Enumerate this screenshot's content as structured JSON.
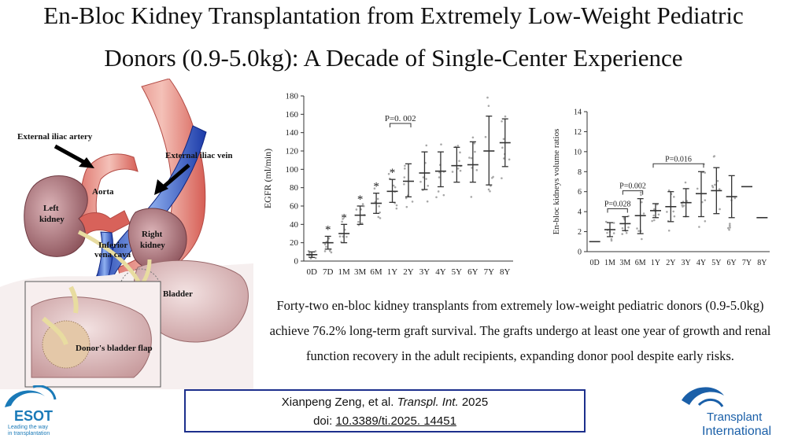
{
  "title": {
    "line1": "En-Bloc Kidney Transplantation from Extremely Low-Weight Pediatric",
    "line2": "Donors (0.9-5.0kg): A Decade of Single-Center Experience"
  },
  "illustration": {
    "labels": {
      "artery": "External iliac artery",
      "vein": "External iliac vein",
      "aorta": "Aorta",
      "left_kidney_1": "Left",
      "left_kidney_2": "kidney",
      "ivc_1": "Inferior",
      "ivc_2": "vena cava",
      "right_kidney_1": "Right",
      "right_kidney_2": "kidney",
      "bladder": "Bladder",
      "flap": "Donor's bladder flap"
    }
  },
  "caption": {
    "line1": "Forty-two en-bloc kidney transplants from extremely low-weight pediatric donors (0.9-5.0kg)",
    "line2": "achieve 76.2% long-term graft survival. The grafts undergo at least one year of growth and renal",
    "line3": "function recovery in the adult recipients, expanding donor pool despite early risks."
  },
  "citation": {
    "authors": "Xianpeng Zeng, et al. ",
    "journal": "Transpl. Int.",
    "year": " 2025",
    "doi_label": "doi: ",
    "doi": "10.3389/ti.2025. 14451"
  },
  "logos": {
    "esot_name": "ESOT",
    "esot_tagline_1": "Leading the way",
    "esot_tagline_2": "in transplantation",
    "ti_name_1": "Transplant",
    "ti_name_2": "International",
    "ti_color": "#1a5fa8",
    "esot_color": "#1a7ab8"
  },
  "chart_data": [
    {
      "type": "scatter",
      "ylabel": "EGFR (ml/min)",
      "ylim": [
        0,
        180
      ],
      "yticks": [
        0,
        20,
        40,
        60,
        80,
        100,
        120,
        140,
        160,
        180
      ],
      "categories": [
        "0D",
        "7D",
        "1M",
        "3M",
        "6M",
        "1Y",
        "2Y",
        "3Y",
        "4Y",
        "5Y",
        "6Y",
        "7Y",
        "8Y"
      ],
      "mean": [
        7,
        20,
        30,
        50,
        63,
        76,
        87,
        96,
        98,
        104,
        105,
        120,
        129
      ],
      "lower": [
        4,
        13,
        20,
        40,
        52,
        64,
        70,
        78,
        81,
        86,
        86,
        83,
        103
      ],
      "upper": [
        10,
        27,
        40,
        60,
        74,
        89,
        106,
        119,
        119,
        124,
        130,
        158,
        155
      ],
      "significance_marks": [
        "",
        "*",
        "*",
        "*",
        "*",
        "*",
        "",
        "",
        "",
        "",
        "",
        "",
        ""
      ],
      "bracket": {
        "label": "P=0. 002",
        "from": "1Y",
        "to": "2Y"
      },
      "points_color": "#a8a8a8",
      "line_color": "#333333"
    },
    {
      "type": "scatter",
      "ylabel": "En-bloc kidneys volume ratios",
      "ylim": [
        0,
        14
      ],
      "yticks": [
        0,
        2,
        4,
        6,
        8,
        10,
        12,
        14
      ],
      "categories": [
        "0D",
        "1M",
        "3M",
        "6M",
        "1Y",
        "2Y",
        "3Y",
        "4Y",
        "5Y",
        "6Y",
        "7Y",
        "8Y"
      ],
      "mean": [
        1.0,
        2.2,
        2.8,
        3.6,
        4.1,
        4.5,
        4.9,
        5.8,
        6.1,
        5.5,
        6.5,
        3.4
      ],
      "lower": [
        1.0,
        1.5,
        2.1,
        1.8,
        3.4,
        3.0,
        3.5,
        3.5,
        3.8,
        3.4,
        6.5,
        3.4
      ],
      "upper": [
        1.0,
        2.9,
        3.5,
        5.3,
        4.8,
        6.0,
        6.3,
        8.0,
        8.4,
        7.6,
        6.5,
        3.4
      ],
      "brackets": [
        {
          "label": "P=0.028",
          "from": "1M",
          "to": "3M"
        },
        {
          "label": "P=0.002",
          "from": "3M",
          "to": "6M"
        },
        {
          "label": "P=0.016",
          "from": "1Y",
          "to": "4Y"
        }
      ],
      "points_color": "#a8a8a8",
      "line_color": "#333333"
    }
  ]
}
